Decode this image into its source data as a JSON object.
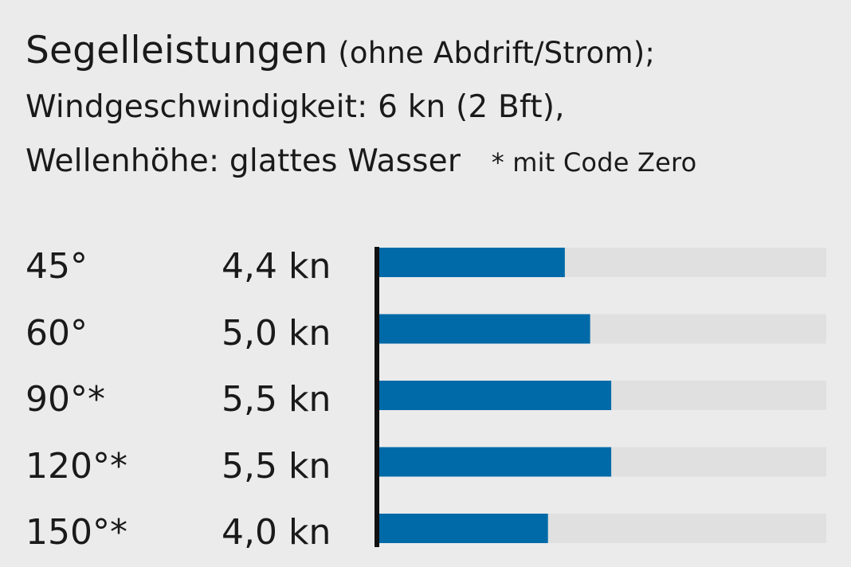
{
  "heading": {
    "title": "Segelleistungen",
    "subtitle": "(ohne Abdrift/Strom);",
    "line2": "Windgeschwindigkeit: 6 kn (2 Bft),",
    "line3": "Wellenhöhe: glattes Wasser",
    "footnote": "* mit Code Zero"
  },
  "colors": {
    "bar": "#006aa8",
    "track": "#e0e0e0",
    "axis": "#111111",
    "background": "#ebebeb"
  },
  "chart_data": {
    "type": "bar",
    "orientation": "horizontal",
    "categories": [
      "45°",
      "60°",
      "90°*",
      "120°*",
      "150°*"
    ],
    "value_labels": [
      "4,4 kn",
      "5,0 kn",
      "5,5 kn",
      "5,5 kn",
      "4,0 kn"
    ],
    "values": [
      4.4,
      5.0,
      5.5,
      5.5,
      4.0
    ],
    "unit": "kn",
    "xlim": [
      0,
      10.6
    ],
    "grid": false,
    "legend": "none"
  }
}
